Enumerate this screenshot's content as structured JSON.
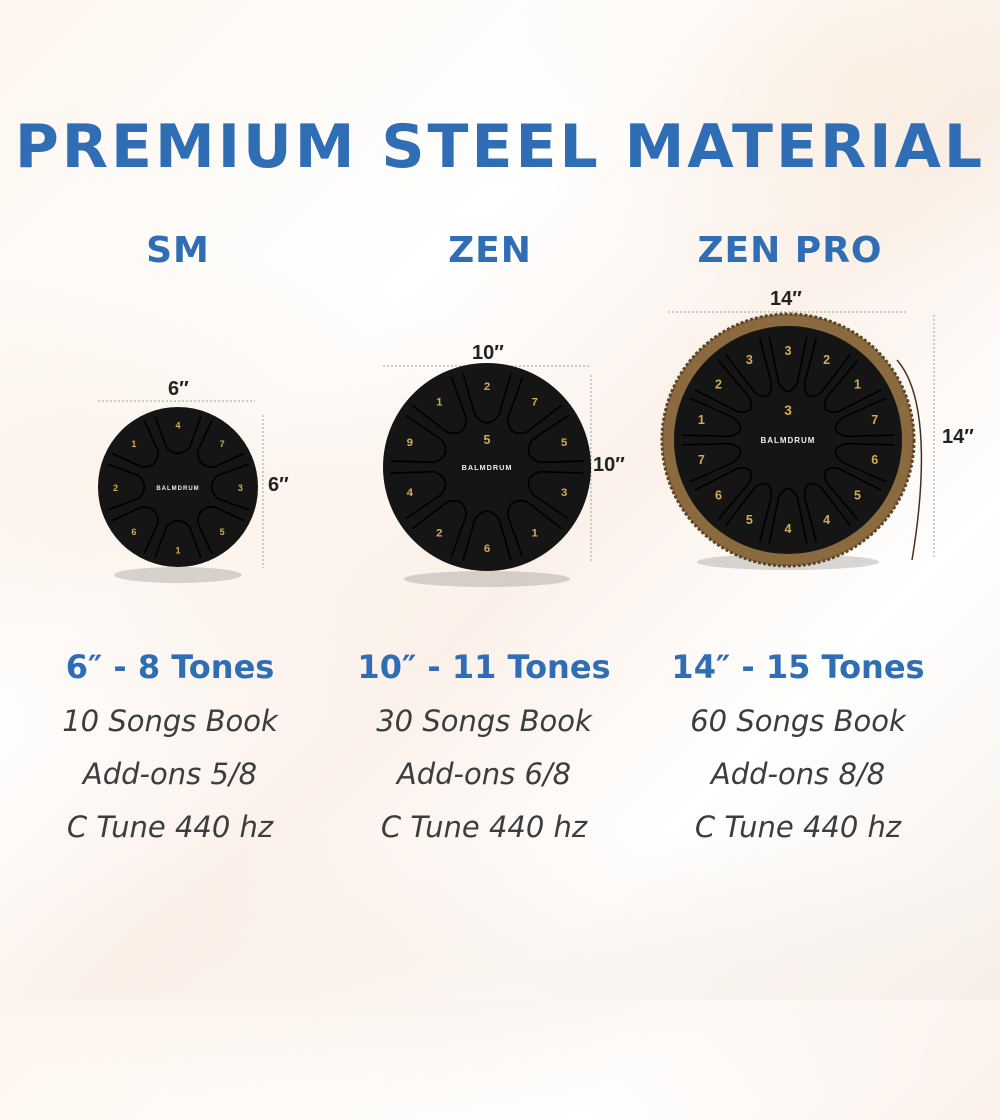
{
  "title": "PREMIUM STEEL MATERIAL",
  "colors": {
    "accent": "#2f6db5",
    "text": "#3d3d3d",
    "drum": "#151515",
    "gold": "#d4ab55",
    "rope": "#8a6a3e"
  },
  "logo_text": "BALMDRUM",
  "products": [
    {
      "model": "SM",
      "width": "6″",
      "height": "6″",
      "headline": "6″ - 8 Tones",
      "songs": "10 Songs Book",
      "addons": "Add-ons 5/8",
      "tune": "C Tune 440 hz",
      "tongue_numbers": [
        "4",
        "7",
        "3",
        "5",
        "1",
        "6",
        "2",
        "1"
      ]
    },
    {
      "model": "ZEN",
      "width": "10″",
      "height": "10″",
      "headline": "10″ - 11 Tones",
      "songs": "30 Songs Book",
      "addons": "Add-ons 6/8",
      "tune": "C Tune 440 hz",
      "tongue_numbers": [
        "2",
        "7",
        "5",
        "3",
        "1",
        "6",
        "2",
        "4",
        "9",
        "1"
      ],
      "center_number": "5"
    },
    {
      "model": "ZEN PRO",
      "width": "14″",
      "height": "14″",
      "headline": "14″ - 15 Tones",
      "songs": "60 Songs Book",
      "addons": "Add-ons 8/8",
      "tune": "C Tune 440 hz",
      "tongue_numbers": [
        "3",
        "2",
        "1",
        "7",
        "6",
        "5",
        "4",
        "4",
        "5",
        "6",
        "7",
        "1",
        "2",
        "3"
      ],
      "center_number": "3"
    }
  ]
}
